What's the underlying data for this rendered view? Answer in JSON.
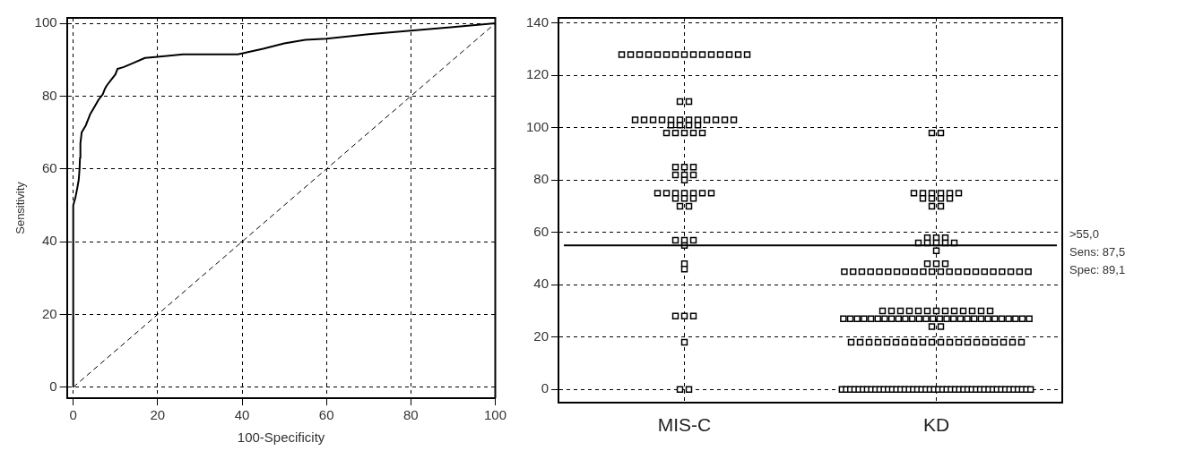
{
  "chart_data": [
    {
      "type": "line",
      "xlabel": "100-Specificity",
      "ylabel": "Sensitivity",
      "xlim": [
        -1.5,
        100
      ],
      "ylim": [
        -3,
        101.5
      ],
      "xticks": [
        0,
        20,
        40,
        60,
        80,
        100
      ],
      "yticks": [
        0,
        20,
        40,
        60,
        80,
        100
      ],
      "grid": true,
      "marker": "none",
      "series": [
        {
          "color": "#000000",
          "line_style": "solid",
          "x": [
            0,
            0,
            0.5,
            1,
            1.3,
            1.5,
            1.6,
            1.7,
            2,
            3,
            4,
            5,
            6,
            7,
            7.5,
            8,
            9,
            10,
            10.5,
            12,
            14,
            17,
            20,
            26,
            39,
            45,
            50,
            55,
            60,
            70,
            80,
            90,
            100
          ],
          "values": [
            0,
            50,
            52,
            55,
            57,
            60,
            63,
            67,
            70,
            72,
            75,
            77,
            79,
            80.5,
            82,
            83,
            84.5,
            86,
            87.5,
            88,
            89,
            90.5,
            90.8,
            91.5,
            91.5,
            93,
            94.5,
            95.5,
            95.8,
            97,
            98,
            99,
            100
          ]
        },
        {
          "color": "#000000",
          "line_style": "dashed",
          "x": [
            0,
            100
          ],
          "values": [
            0,
            100
          ]
        }
      ]
    },
    {
      "type": "scatter",
      "categories": [
        "MIS-C",
        "KD"
      ],
      "ylim": [
        -5,
        142
      ],
      "yticks": [
        0,
        20,
        40,
        60,
        80,
        100,
        120,
        140
      ],
      "grid": true,
      "marker": "square",
      "ref_lines": [
        {
          "axis": "y",
          "value": 55,
          "label": ">55,0",
          "color": "#000000"
        }
      ],
      "annotations": [
        "Sens: 87,5",
        "Spec: 89,1"
      ],
      "series": [
        {
          "color": "#000000",
          "x": [
            "MIS-C",
            "MIS-C",
            "MIS-C",
            "MIS-C",
            "MIS-C",
            "MIS-C",
            "MIS-C",
            "MIS-C",
            "MIS-C",
            "MIS-C",
            "MIS-C",
            "MIS-C",
            "MIS-C",
            "MIS-C",
            "MIS-C",
            "MIS-C",
            "MIS-C",
            "MIS-C",
            "MIS-C",
            "MIS-C",
            "MIS-C",
            "MIS-C",
            "MIS-C",
            "MIS-C",
            "MIS-C",
            "MIS-C",
            "MIS-C",
            "MIS-C",
            "MIS-C",
            "MIS-C",
            "MIS-C",
            "MIS-C",
            "MIS-C",
            "MIS-C",
            "MIS-C",
            "MIS-C",
            "MIS-C",
            "MIS-C",
            "MIS-C",
            "MIS-C",
            "MIS-C",
            "MIS-C",
            "MIS-C",
            "MIS-C",
            "MIS-C",
            "MIS-C",
            "MIS-C",
            "MIS-C",
            "MIS-C",
            "MIS-C",
            "MIS-C",
            "MIS-C",
            "MIS-C",
            "MIS-C",
            "MIS-C",
            "MIS-C",
            "MIS-C",
            "MIS-C",
            "MIS-C",
            "MIS-C",
            "MIS-C",
            "MIS-C",
            "MIS-C",
            "MIS-C",
            "MIS-C",
            "MIS-C",
            "MIS-C",
            "MIS-C",
            "MIS-C"
          ],
          "values": [
            128,
            128,
            128,
            128,
            128,
            128,
            128,
            128,
            128,
            128,
            128,
            128,
            128,
            128,
            128,
            110,
            110,
            103,
            103,
            103,
            103,
            103,
            103,
            103,
            103,
            103,
            103,
            103,
            103,
            101,
            101,
            101,
            101,
            98,
            98,
            98,
            98,
            98,
            85,
            85,
            85,
            82,
            82,
            82,
            80,
            75,
            75,
            75,
            75,
            75,
            75,
            75,
            73,
            73,
            73,
            70,
            70,
            57,
            57,
            57,
            55,
            48,
            46,
            28,
            28,
            28,
            18,
            0,
            0
          ]
        },
        {
          "color": "#000000",
          "x": [
            "KD",
            "KD",
            "KD",
            "KD",
            "KD",
            "KD",
            "KD",
            "KD",
            "KD",
            "KD",
            "KD",
            "KD",
            "KD",
            "KD",
            "KD",
            "KD",
            "KD",
            "KD",
            "KD",
            "KD",
            "KD",
            "KD",
            "KD",
            "KD",
            "KD",
            "KD",
            "KD",
            "KD",
            "KD",
            "KD",
            "KD",
            "KD",
            "KD",
            "KD",
            "KD",
            "KD",
            "KD",
            "KD",
            "KD",
            "KD",
            "KD",
            "KD",
            "KD",
            "KD",
            "KD",
            "KD",
            "KD",
            "KD",
            "KD",
            "KD",
            "KD",
            "KD",
            "KD",
            "KD",
            "KD",
            "KD",
            "KD",
            "KD",
            "KD",
            "KD",
            "KD",
            "KD",
            "KD",
            "KD",
            "KD",
            "KD",
            "KD",
            "KD",
            "KD",
            "KD",
            "KD",
            "KD",
            "KD",
            "KD",
            "KD",
            "KD",
            "KD",
            "KD",
            "KD",
            "KD",
            "KD",
            "KD",
            "KD",
            "KD",
            "KD",
            "KD",
            "KD",
            "KD",
            "KD",
            "KD",
            "KD",
            "KD",
            "KD",
            "KD",
            "KD",
            "KD",
            "KD",
            "KD",
            "KD",
            "KD",
            "KD",
            "KD",
            "KD",
            "KD",
            "KD",
            "KD",
            "KD",
            "KD",
            "KD",
            "KD",
            "KD",
            "KD",
            "KD",
            "KD",
            "KD",
            "KD",
            "KD",
            "KD",
            "KD",
            "KD",
            "KD",
            "KD",
            "KD",
            "KD",
            "KD",
            "KD",
            "KD",
            "KD",
            "KD",
            "KD",
            "KD",
            "KD",
            "KD",
            "KD",
            "KD",
            "KD",
            "KD",
            "KD",
            "KD",
            "KD",
            "KD",
            "KD",
            "KD",
            "KD",
            "KD",
            "KD",
            "KD",
            "KD",
            "KD",
            "KD",
            "KD",
            "KD",
            "KD",
            "KD",
            "KD",
            "KD",
            "KD"
          ],
          "values": [
            98,
            98,
            75,
            75,
            75,
            75,
            75,
            75,
            73,
            73,
            73,
            73,
            70,
            70,
            58,
            58,
            58,
            56,
            56,
            56,
            56,
            56,
            53,
            48,
            48,
            48,
            45,
            45,
            45,
            45,
            45,
            45,
            45,
            45,
            45,
            45,
            45,
            45,
            45,
            45,
            45,
            45,
            45,
            45,
            45,
            45,
            45,
            45,
            30,
            30,
            30,
            30,
            30,
            30,
            30,
            30,
            30,
            30,
            30,
            30,
            30,
            27,
            27,
            27,
            27,
            27,
            27,
            27,
            27,
            27,
            27,
            27,
            27,
            27,
            27,
            27,
            27,
            27,
            27,
            27,
            27,
            27,
            27,
            27,
            27,
            27,
            27,
            27,
            27,
            24,
            24,
            18,
            18,
            18,
            18,
            18,
            18,
            18,
            18,
            18,
            18,
            18,
            18,
            18,
            18,
            18,
            18,
            18,
            18,
            18,
            18,
            0,
            0,
            0,
            0,
            0,
            0,
            0,
            0,
            0,
            0,
            0,
            0,
            0,
            0,
            0,
            0,
            0,
            0,
            0,
            0,
            0,
            0,
            0,
            0,
            0,
            0,
            0,
            0,
            0,
            0,
            0,
            0,
            0,
            0,
            0,
            0,
            0,
            0,
            0,
            0,
            0,
            0,
            0,
            0,
            0,
            0
          ]
        }
      ]
    }
  ]
}
